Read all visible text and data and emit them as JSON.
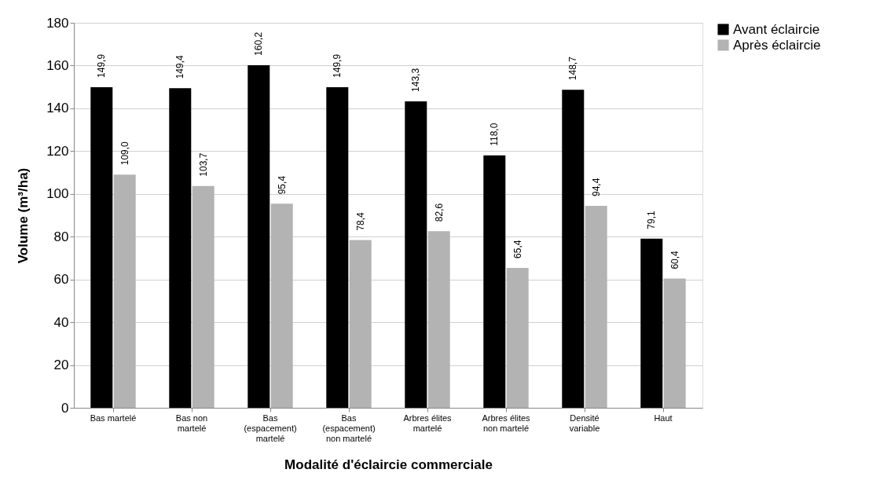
{
  "chart_data": {
    "type": "bar",
    "xlabel": "Modalité d'éclaircie commerciale",
    "ylabel": "Volume (m³/ha)",
    "categories": [
      "Bas martelé",
      "Bas non martelé",
      "Bas (espacement) martelé",
      "Bas (espacement) non martelé",
      "Arbres élites martelé",
      "Arbres élites non martelé",
      "Densité variable",
      "Haut"
    ],
    "series": [
      {
        "name": "Avant éclaircie",
        "color": "#000000",
        "values": [
          149.9,
          149.4,
          160.2,
          149.9,
          143.3,
          118.0,
          148.7,
          79.1
        ],
        "value_labels": [
          "149,9",
          "149,4",
          "160,2",
          "149,9",
          "143,3",
          "118,0",
          "148,7",
          "79,1"
        ]
      },
      {
        "name": "Après éclaircie",
        "color": "#b3b3b3",
        "values": [
          109.0,
          103.7,
          95.4,
          78.4,
          82.6,
          65.4,
          94.4,
          60.4
        ],
        "value_labels": [
          "109,0",
          "103,7",
          "95,4",
          "78,4",
          "82,6",
          "65,4",
          "94,4",
          "60,4"
        ]
      }
    ],
    "ylim": [
      0,
      180
    ],
    "yticks": [
      0,
      20,
      40,
      60,
      80,
      100,
      120,
      140,
      160,
      180
    ],
    "grid": "y",
    "legend": "right"
  }
}
